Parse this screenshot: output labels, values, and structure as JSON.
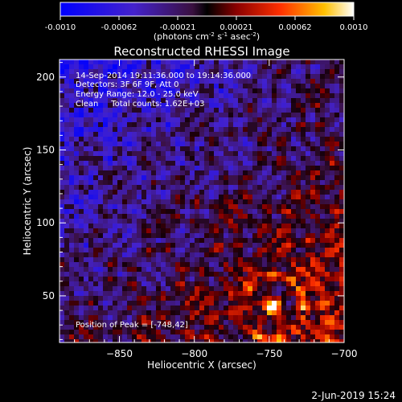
{
  "colorbar": {
    "ticks": [
      "-0.0010",
      "-0.00062",
      "-0.00021",
      "0.00021",
      "0.00062",
      "0.0010"
    ],
    "unit_main": "(photons cm",
    "unit_exp1": "-2",
    "unit_mid": " s",
    "unit_exp2": "-1",
    "unit_mid2": " asec",
    "unit_exp3": "-2",
    "unit_end": ")"
  },
  "chart_data": {
    "type": "heatmap",
    "title": "Reconstructed RHESSI Image",
    "xlabel": "Heliocentric X (arcsec)",
    "ylabel": "Heliocentric Y (arcsec)",
    "xlim": [
      -890,
      -700
    ],
    "ylim": [
      18,
      212
    ],
    "x_ticks": [
      -850,
      -800,
      -750,
      -700
    ],
    "y_ticks": [
      50,
      100,
      150,
      200
    ],
    "value_range": [
      -0.001,
      0.001
    ],
    "annotations": {
      "line1": "14-Sep-2014 19:11:36.000 to 19:14:36.000",
      "line2": "Detectors: 3F 6F 9F, Att 0",
      "line3": "Energy Range: 12.0 - 25.0 keV",
      "line4": "Clean     Total counts: 1.62E+03",
      "peak": "Position of Peak = [-748,42]"
    },
    "peak_position": [
      -748,
      42
    ]
  },
  "footer": {
    "date": "2-Jun-2019 15:24"
  }
}
